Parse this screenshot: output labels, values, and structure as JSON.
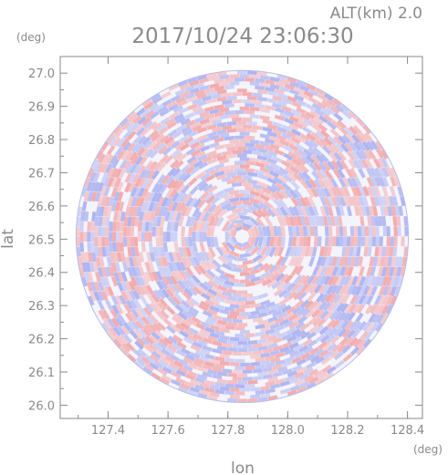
{
  "header": {
    "altitude_label": "ALT(km)  2.0",
    "timestamp": "2017/10/24 23:06:30"
  },
  "chart_data": {
    "type": "heatmap",
    "title": "2017/10/24 23:06:30",
    "xlabel": "lon",
    "ylabel": "lat",
    "x_unit": "(deg)",
    "y_unit": "(deg)",
    "xlim": [
      127.24,
      128.45
    ],
    "ylim": [
      25.96,
      27.05
    ],
    "x_ticks": [
      127.4,
      127.6,
      127.8,
      128.0,
      128.2,
      128.4
    ],
    "x_tick_labels": [
      "127.4",
      "127.6",
      "127.8",
      "128.0",
      "128.2",
      "128.4"
    ],
    "y_ticks": [
      26.0,
      26.1,
      26.2,
      26.3,
      26.4,
      26.5,
      26.6,
      26.7,
      26.8,
      26.9,
      27.0
    ],
    "y_tick_labels": [
      "26.0",
      "26.1",
      "26.2",
      "26.3",
      "26.4",
      "26.5",
      "26.6",
      "26.7",
      "26.8",
      "26.9",
      "27.0"
    ],
    "radar_center": {
      "lon": 127.848,
      "lat": 26.508
    },
    "radar_radius_deg_lat": 0.5,
    "colors": {
      "positive": "#f2a6a8",
      "negative": "#a9b0f0",
      "axis": "#8a8a8a"
    },
    "grid": false
  }
}
